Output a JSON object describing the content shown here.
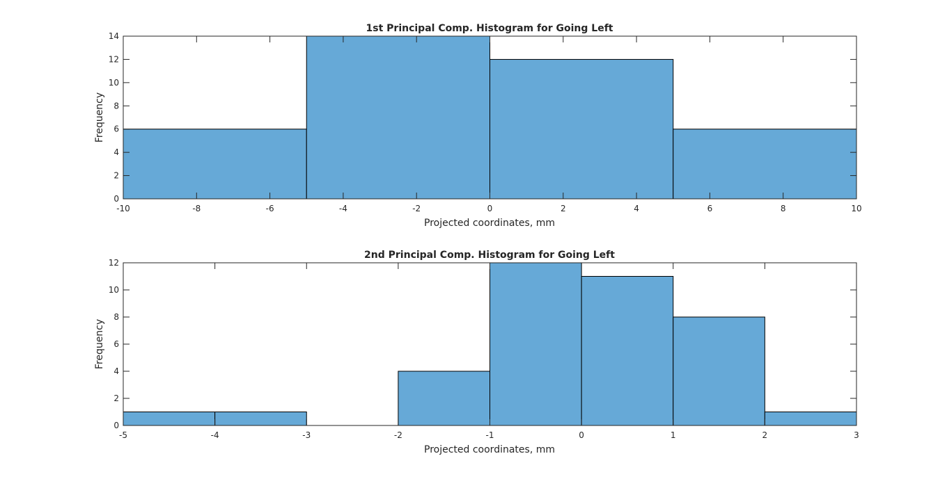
{
  "chart_data": [
    {
      "type": "bar",
      "title": "1st Principal Comp. Histogram for Going Left",
      "xlabel": "Projected coordinates, mm",
      "ylabel": "Frequency",
      "xlim": [
        -10,
        10
      ],
      "ylim": [
        0,
        14
      ],
      "xticks": [
        -10,
        -8,
        -6,
        -4,
        -2,
        0,
        2,
        4,
        6,
        8,
        10
      ],
      "yticks": [
        0,
        2,
        4,
        6,
        8,
        10,
        12,
        14
      ],
      "bin_edges": [
        -10,
        -5,
        0,
        5,
        10
      ],
      "values": [
        6,
        14,
        12,
        6
      ],
      "bar_color": "#66a9d7",
      "edge_color": "#000000",
      "grid": false
    },
    {
      "type": "bar",
      "title": "2nd Principal Comp. Histogram for Going Left",
      "xlabel": "Projected coordinates, mm",
      "ylabel": "Frequency",
      "xlim": [
        -5,
        3
      ],
      "ylim": [
        0,
        12
      ],
      "xticks": [
        -5,
        -4,
        -3,
        -2,
        -1,
        0,
        1,
        2,
        3
      ],
      "yticks": [
        0,
        2,
        4,
        6,
        8,
        10,
        12
      ],
      "bin_edges": [
        -5,
        -4,
        -3,
        -2,
        -1,
        0,
        1,
        2,
        3
      ],
      "values": [
        1,
        1,
        0,
        4,
        12,
        11,
        8,
        1
      ],
      "bar_color": "#66a9d7",
      "edge_color": "#000000",
      "grid": false
    }
  ]
}
